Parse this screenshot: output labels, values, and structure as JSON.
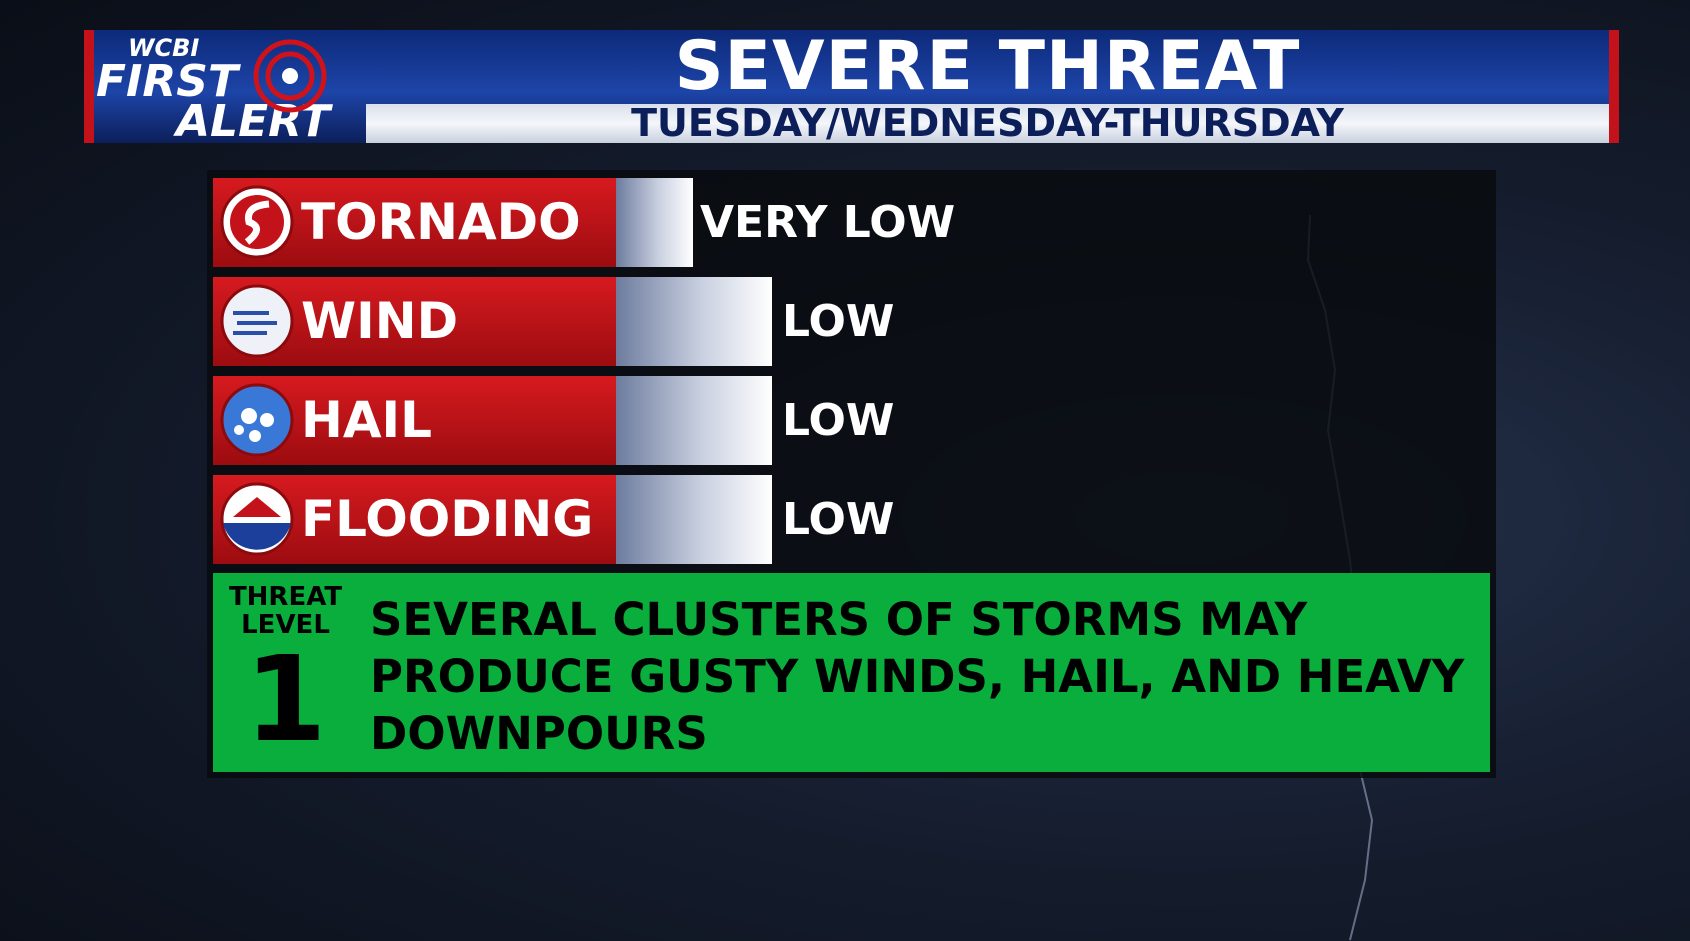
{
  "header": {
    "logo": [
      "WCBI",
      "FIRST",
      "ALERT"
    ],
    "title": "SEVERE THREAT",
    "subtitle": "TUESDAY/WEDNESDAY-THURSDAY"
  },
  "threats": [
    {
      "label": "TORNADO",
      "level": "VERY LOW"
    },
    {
      "label": "WIND",
      "level": "LOW"
    },
    {
      "label": "HAIL",
      "level": "LOW"
    },
    {
      "label": "FLOODING",
      "level": "LOW"
    }
  ],
  "threat_level": {
    "label": [
      "THREAT",
      "LEVEL"
    ],
    "number": "1",
    "description": [
      "SEVERAL CLUSTERS OF STORMS MAY",
      "PRODUCE GUSTY WINDS, HAIL, AND HEAVY",
      "DOWNPOURS"
    ]
  }
}
